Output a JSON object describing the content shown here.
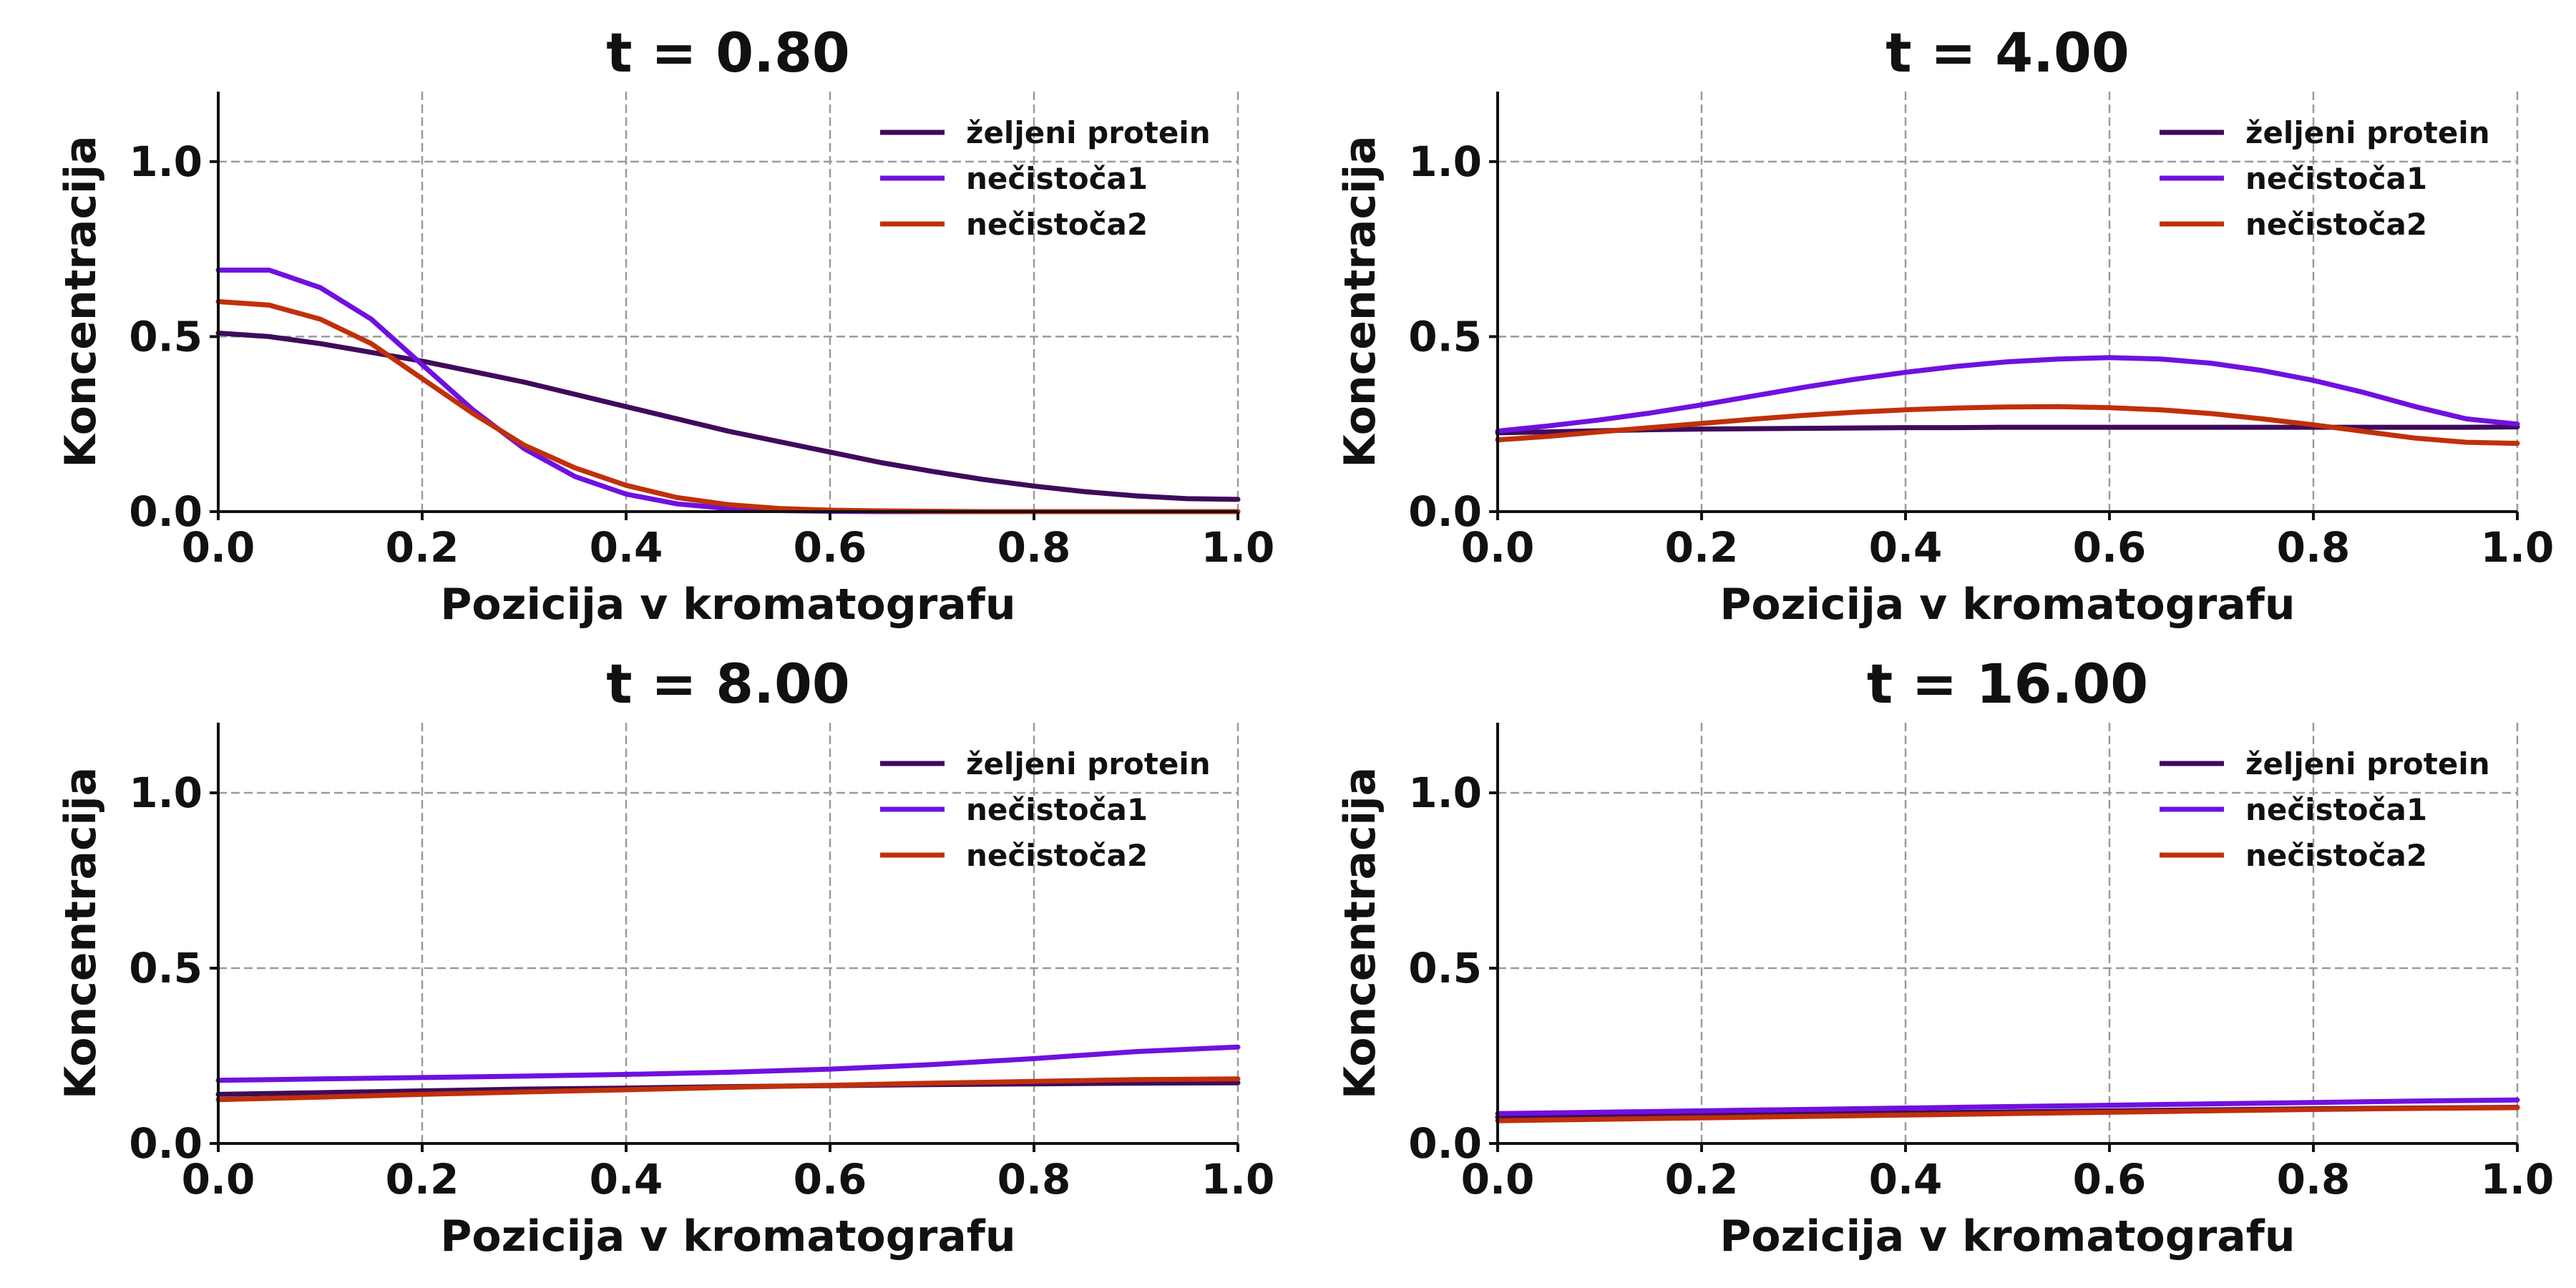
{
  "chart_data": [
    {
      "type": "line",
      "title": "t = 0.80",
      "xlabel": "Pozicija v kromatografu",
      "ylabel": "Koncentracija",
      "xlim": [
        0,
        1
      ],
      "ylim": [
        0,
        1.2
      ],
      "xticks": [
        "0.0",
        "0.2",
        "0.4",
        "0.6",
        "0.8",
        "1.0"
      ],
      "yticks": [
        "0.0",
        "0.5",
        "1.0"
      ],
      "grid": true,
      "legend_position": "top-right",
      "x": [
        0,
        0.05,
        0.1,
        0.15,
        0.2,
        0.25,
        0.3,
        0.35,
        0.4,
        0.45,
        0.5,
        0.55,
        0.6,
        0.65,
        0.7,
        0.75,
        0.8,
        0.85,
        0.9,
        0.95,
        1.0
      ],
      "series": [
        {
          "name": "željeni protein",
          "color": "#3f0a5c",
          "values": [
            0.51,
            0.5,
            0.48,
            0.455,
            0.43,
            0.4,
            0.37,
            0.335,
            0.3,
            0.265,
            0.23,
            0.2,
            0.17,
            0.14,
            0.115,
            0.092,
            0.073,
            0.057,
            0.045,
            0.037,
            0.035
          ]
        },
        {
          "name": "nečistoča1",
          "color": "#7010e0",
          "values": [
            0.69,
            0.69,
            0.64,
            0.55,
            0.42,
            0.29,
            0.18,
            0.1,
            0.05,
            0.022,
            0.009,
            0.003,
            0.001,
            0.0,
            0.0,
            0.0,
            0.0,
            0.0,
            0.0,
            0.0,
            0.0
          ]
        },
        {
          "name": "nečistoča2",
          "color": "#c0300a",
          "values": [
            0.6,
            0.59,
            0.55,
            0.48,
            0.38,
            0.28,
            0.19,
            0.125,
            0.075,
            0.04,
            0.02,
            0.009,
            0.004,
            0.002,
            0.001,
            0.0,
            0.0,
            0.0,
            0.0,
            0.0,
            0.0
          ]
        }
      ]
    },
    {
      "type": "line",
      "title": "t = 4.00",
      "xlabel": "Pozicija v kromatografu",
      "ylabel": "Koncentracija",
      "xlim": [
        0,
        1
      ],
      "ylim": [
        0,
        1.2
      ],
      "xticks": [
        "0.0",
        "0.2",
        "0.4",
        "0.6",
        "0.8",
        "1.0"
      ],
      "yticks": [
        "0.0",
        "0.5",
        "1.0"
      ],
      "grid": true,
      "legend_position": "top-right",
      "x": [
        0,
        0.05,
        0.1,
        0.15,
        0.2,
        0.25,
        0.3,
        0.35,
        0.4,
        0.45,
        0.5,
        0.55,
        0.6,
        0.65,
        0.7,
        0.75,
        0.8,
        0.85,
        0.9,
        0.95,
        1.0
      ],
      "series": [
        {
          "name": "željeni protein",
          "color": "#3f0a5c",
          "values": [
            0.225,
            0.228,
            0.231,
            0.234,
            0.236,
            0.237,
            0.238,
            0.239,
            0.24,
            0.24,
            0.241,
            0.241,
            0.241,
            0.241,
            0.241,
            0.241,
            0.241,
            0.241,
            0.241,
            0.241,
            0.242
          ]
        },
        {
          "name": "nečistoča1",
          "color": "#7010e0",
          "values": [
            0.23,
            0.245,
            0.262,
            0.282,
            0.305,
            0.33,
            0.355,
            0.378,
            0.398,
            0.415,
            0.428,
            0.436,
            0.44,
            0.436,
            0.424,
            0.403,
            0.375,
            0.34,
            0.3,
            0.265,
            0.25
          ]
        },
        {
          "name": "nečistoča2",
          "color": "#c0300a",
          "values": [
            0.205,
            0.215,
            0.228,
            0.24,
            0.252,
            0.264,
            0.275,
            0.284,
            0.291,
            0.296,
            0.299,
            0.3,
            0.297,
            0.291,
            0.28,
            0.265,
            0.248,
            0.229,
            0.21,
            0.198,
            0.195
          ]
        }
      ]
    },
    {
      "type": "line",
      "title": "t = 8.00",
      "xlabel": "Pozicija v kromatografu",
      "ylabel": "Koncentracija",
      "xlim": [
        0,
        1
      ],
      "ylim": [
        0,
        1.2
      ],
      "xticks": [
        "0.0",
        "0.2",
        "0.4",
        "0.6",
        "0.8",
        "1.0"
      ],
      "yticks": [
        "0.0",
        "0.5",
        "1.0"
      ],
      "grid": true,
      "legend_position": "top-right",
      "x": [
        0,
        0.1,
        0.2,
        0.3,
        0.4,
        0.5,
        0.6,
        0.7,
        0.8,
        0.9,
        1.0
      ],
      "series": [
        {
          "name": "željeni protein",
          "color": "#3f0a5c",
          "values": [
            0.14,
            0.145,
            0.15,
            0.155,
            0.158,
            0.162,
            0.165,
            0.168,
            0.17,
            0.172,
            0.173
          ]
        },
        {
          "name": "nečistoča1",
          "color": "#7010e0",
          "values": [
            0.18,
            0.184,
            0.188,
            0.192,
            0.197,
            0.203,
            0.212,
            0.225,
            0.242,
            0.262,
            0.275
          ]
        },
        {
          "name": "nečistoča2",
          "color": "#c0300a",
          "values": [
            0.125,
            0.132,
            0.14,
            0.147,
            0.153,
            0.16,
            0.166,
            0.172,
            0.177,
            0.182,
            0.184
          ]
        }
      ]
    },
    {
      "type": "line",
      "title": "t = 16.00",
      "xlabel": "Pozicija v kromatografu",
      "ylabel": "Koncentracija",
      "xlim": [
        0,
        1
      ],
      "ylim": [
        0,
        1.2
      ],
      "xticks": [
        "0.0",
        "0.2",
        "0.4",
        "0.6",
        "0.8",
        "1.0"
      ],
      "yticks": [
        "0.0",
        "0.5",
        "1.0"
      ],
      "grid": true,
      "legend_position": "top-right",
      "x": [
        0,
        0.1,
        0.2,
        0.3,
        0.4,
        0.5,
        0.6,
        0.7,
        0.8,
        0.9,
        1.0
      ],
      "series": [
        {
          "name": "željeni protein",
          "color": "#3f0a5c",
          "values": [
            0.075,
            0.078,
            0.081,
            0.084,
            0.087,
            0.09,
            0.093,
            0.096,
            0.099,
            0.101,
            0.103
          ]
        },
        {
          "name": "nečistoča1",
          "color": "#7010e0",
          "values": [
            0.085,
            0.089,
            0.093,
            0.097,
            0.101,
            0.105,
            0.109,
            0.113,
            0.117,
            0.121,
            0.124
          ]
        },
        {
          "name": "nečistoča2",
          "color": "#c0300a",
          "values": [
            0.065,
            0.069,
            0.073,
            0.077,
            0.081,
            0.085,
            0.089,
            0.093,
            0.097,
            0.1,
            0.102
          ]
        }
      ]
    }
  ]
}
